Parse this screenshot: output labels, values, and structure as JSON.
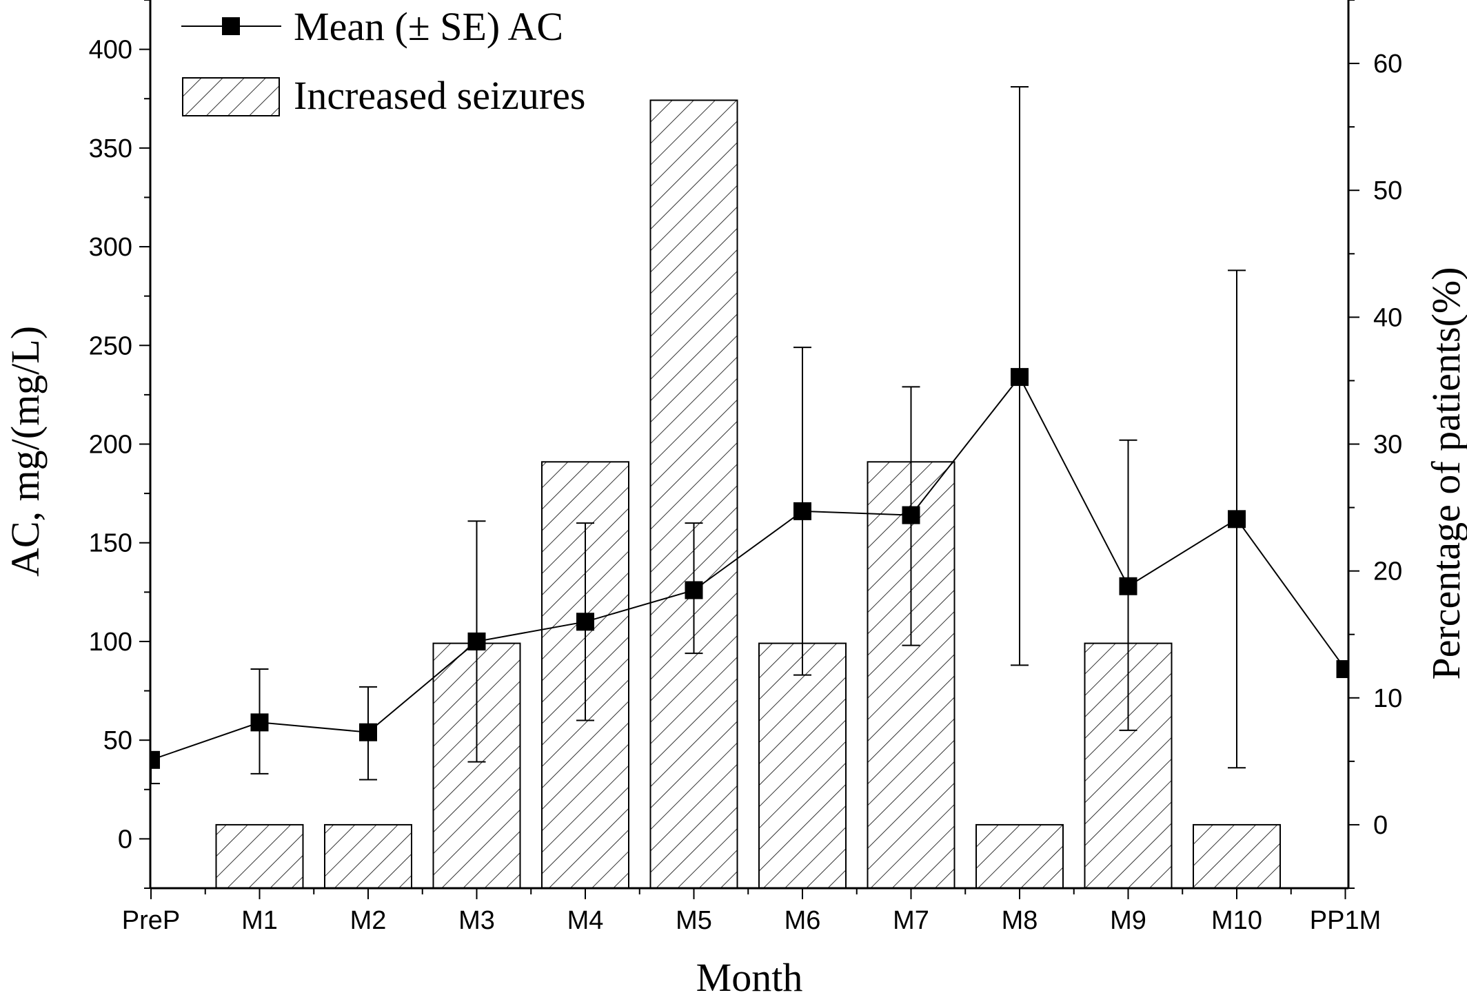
{
  "chart_data": {
    "type": "bar",
    "categories": [
      "PreP",
      "M1",
      "M2",
      "M3",
      "M4",
      "M5",
      "M6",
      "M7",
      "M8",
      "M9",
      "M10",
      "PP1M"
    ],
    "xlabel": "Month",
    "ylabel_left": "AC, mg/(mg/L)",
    "ylabel_right": "Percentage of patients(%)",
    "ylim_left": [
      -25,
      425
    ],
    "yticks_left": [
      0,
      50,
      100,
      150,
      200,
      250,
      300,
      350,
      400
    ],
    "ylim_right": [
      -5,
      65
    ],
    "yticks_right": [
      0,
      10,
      20,
      30,
      40,
      50,
      60
    ],
    "legend_position": "top-left",
    "series": [
      {
        "name": "Increased seizures",
        "type": "bar",
        "axis": "right",
        "pattern": "diagonal-hatch",
        "values": [
          null,
          0,
          0,
          14.3,
          28.6,
          57.1,
          14.3,
          28.6,
          0,
          14.3,
          0,
          null
        ]
      },
      {
        "name": "Mean (±  SE) AC",
        "type": "line",
        "axis": "left",
        "marker": "square",
        "values": [
          40,
          59,
          54,
          100,
          110,
          126,
          166,
          164,
          234,
          128,
          162,
          86
        ],
        "error_low": [
          28,
          33,
          30,
          39,
          60,
          94,
          83,
          98,
          88,
          55,
          36,
          null
        ],
        "error_high": [
          null,
          86,
          77,
          161,
          160,
          160,
          249,
          229,
          381,
          202,
          288,
          null
        ]
      }
    ],
    "legend": {
      "line_label": "Mean (±  SE) AC",
      "bar_label": "Increased seizures"
    },
    "colors": {
      "ink": "#000000",
      "bar_fill": "#ffffff"
    }
  }
}
